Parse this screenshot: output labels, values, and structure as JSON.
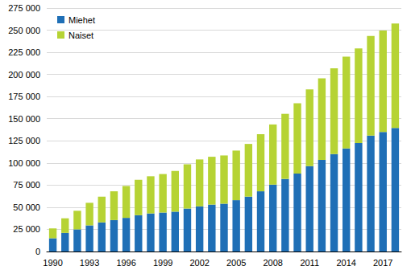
{
  "chart_data": {
    "type": "bar",
    "stacked": true,
    "grid": true,
    "legend": "top-left",
    "categories": [
      "1990",
      null,
      null,
      "1993",
      null,
      null,
      "1996",
      null,
      null,
      "1999",
      null,
      null,
      "2002",
      null,
      null,
      "2005",
      null,
      null,
      "2008",
      null,
      null,
      "2011",
      null,
      null,
      "2014",
      null,
      null,
      "2017",
      null
    ],
    "series": [
      {
        "name": "Miehet",
        "color": "#1f6fb6",
        "values": [
          15000,
          21000,
          25000,
          29500,
          33000,
          35500,
          38000,
          41000,
          43000,
          44000,
          45000,
          48500,
          51000,
          53000,
          54000,
          58000,
          62000,
          68000,
          75500,
          82000,
          88000,
          96500,
          103500,
          110000,
          116500,
          122500,
          131000,
          135000,
          139500
        ]
      },
      {
        "name": "Naiset",
        "color": "#b6d334",
        "values": [
          11000,
          16500,
          21000,
          25500,
          29000,
          32500,
          36000,
          40000,
          42000,
          43500,
          46000,
          50000,
          53000,
          54000,
          54500,
          56000,
          59500,
          64500,
          68000,
          73500,
          79500,
          86500,
          92000,
          97000,
          103500,
          107000,
          112500,
          114500,
          118000
        ]
      }
    ],
    "ylim": [
      0,
      275000
    ],
    "yticks": [
      0,
      {
        "value": 25000,
        "label": "25 000"
      },
      {
        "value": 50000,
        "label": "50 000"
      },
      {
        "value": 75000,
        "label": "75 000"
      },
      {
        "value": 100000,
        "label": "100 000"
      },
      {
        "value": 125000,
        "label": "125 000"
      },
      {
        "value": 150000,
        "label": "150 000"
      },
      {
        "value": 175000,
        "label": "175 000"
      },
      {
        "value": 200000,
        "label": "200 000"
      },
      {
        "value": 225000,
        "label": "225 000"
      },
      {
        "value": 250000,
        "label": "250 000"
      },
      {
        "value": 275000,
        "label": "275 000"
      }
    ]
  }
}
